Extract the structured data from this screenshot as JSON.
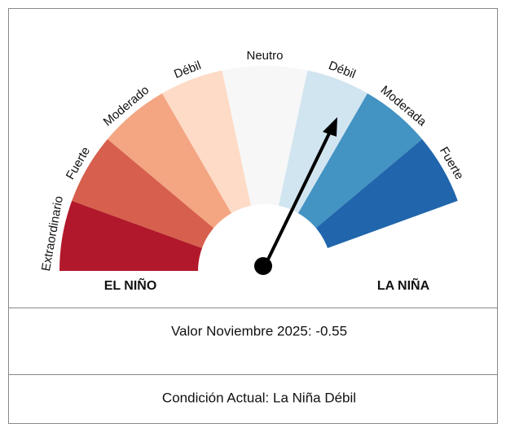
{
  "chart_data": {
    "type": "gauge",
    "categories": [
      "Extraordinario",
      "Fuerte",
      "Moderado",
      "Débil",
      "Neutro",
      "Débil",
      "Moderada",
      "Fuerte"
    ],
    "colors": [
      "#b2182b",
      "#d6604d",
      "#f4a582",
      "#fddbc7",
      "#f7f7f7",
      "#d1e5f0",
      "#4393c3",
      "#2166ac"
    ],
    "left_label": "EL NIÑO",
    "right_label": "LA NIÑA"
  },
  "rows": [
    "Valor Noviembre 2025: -0.55",
    "Condición Actual: La Niña Débil"
  ]
}
